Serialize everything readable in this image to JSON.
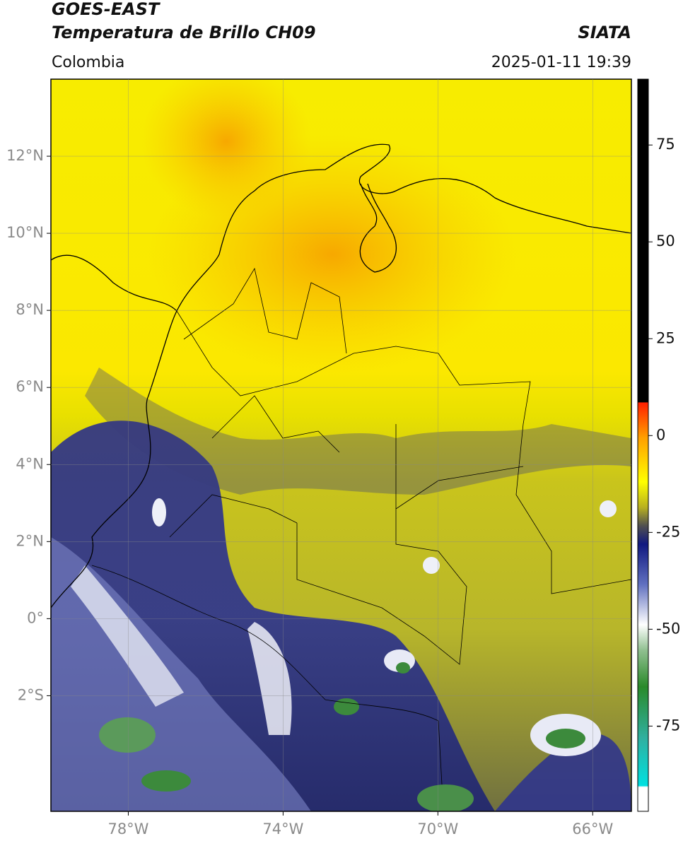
{
  "header": {
    "title": "GOES-EAST",
    "subtitle": "Temperatura de Brillo CH09",
    "source": "SIATA",
    "region": "Colombia",
    "datetime": "2025-01-11 19:39"
  },
  "map": {
    "xlim": [
      -80,
      -65
    ],
    "ylim": [
      -5,
      14
    ],
    "xticks": [
      {
        "value": -78,
        "label": "78°W"
      },
      {
        "value": -74,
        "label": "74°W"
      },
      {
        "value": -70,
        "label": "70°W"
      },
      {
        "value": -66,
        "label": "66°W"
      }
    ],
    "yticks": [
      {
        "value": 12,
        "label": "12°N"
      },
      {
        "value": 10,
        "label": "10°N"
      },
      {
        "value": 8,
        "label": "8°N"
      },
      {
        "value": 6,
        "label": "6°N"
      },
      {
        "value": 4,
        "label": "4°N"
      },
      {
        "value": 2,
        "label": "2°N"
      },
      {
        "value": 0,
        "label": "0°"
      },
      {
        "value": -2,
        "label": "2°S"
      }
    ],
    "grid": true
  },
  "colorbar": {
    "lim": [
      -97,
      92
    ],
    "ticks": [
      75,
      50,
      25,
      0,
      -25,
      -50,
      -75
    ]
  }
}
